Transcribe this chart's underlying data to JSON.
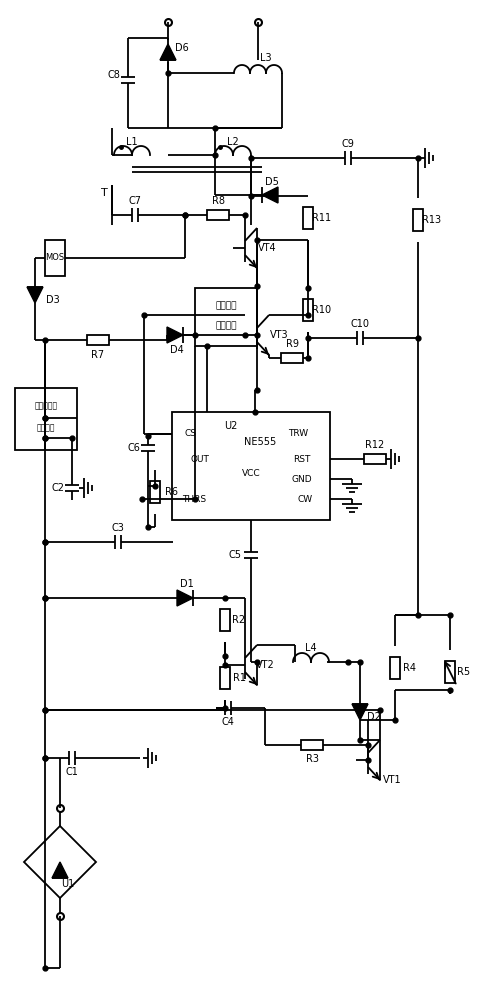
{
  "bg": "#ffffff",
  "lc": "#000000",
  "lw": 1.3,
  "labels": {
    "C8": "C8",
    "D6": "D6",
    "L3": "L3",
    "T": "T",
    "L1": "L1",
    "L2": "L2",
    "C9": "C9",
    "C7": "C7",
    "R8": "R8",
    "VT4": "VT4",
    "D5": "D5",
    "R11": "R11",
    "R13": "R13",
    "R10": "R10",
    "C10": "C10",
    "R7": "R7",
    "D4": "D4",
    "VT3": "VT3",
    "R9": "R9",
    "MOS": "MOS",
    "D3": "D3",
    "bias1": "偏移调整",
    "bias2": "电流电路",
    "scr1": "晶闸管过流",
    "scr2": "保护电路",
    "U2": "U2",
    "NE555": "NE555",
    "CS": "CS",
    "OUT": "OUT",
    "TRW": "TRW",
    "RST": "RST",
    "THRS": "THRS",
    "VCC": "VCC",
    "CW": "CW",
    "GND": "GND",
    "C6": "C6",
    "R6": "R6",
    "R12": "R12",
    "C2": "C2",
    "C3": "C3",
    "D1": "D1",
    "R2": "R2",
    "R1": "R1",
    "VT2": "VT2",
    "L4": "L4",
    "C5": "C5",
    "R4": "R4",
    "R5": "R5",
    "D2": "D2",
    "C4": "C4",
    "R3": "R3",
    "VT1": "VT1",
    "C1": "C1",
    "U1": "U1"
  }
}
